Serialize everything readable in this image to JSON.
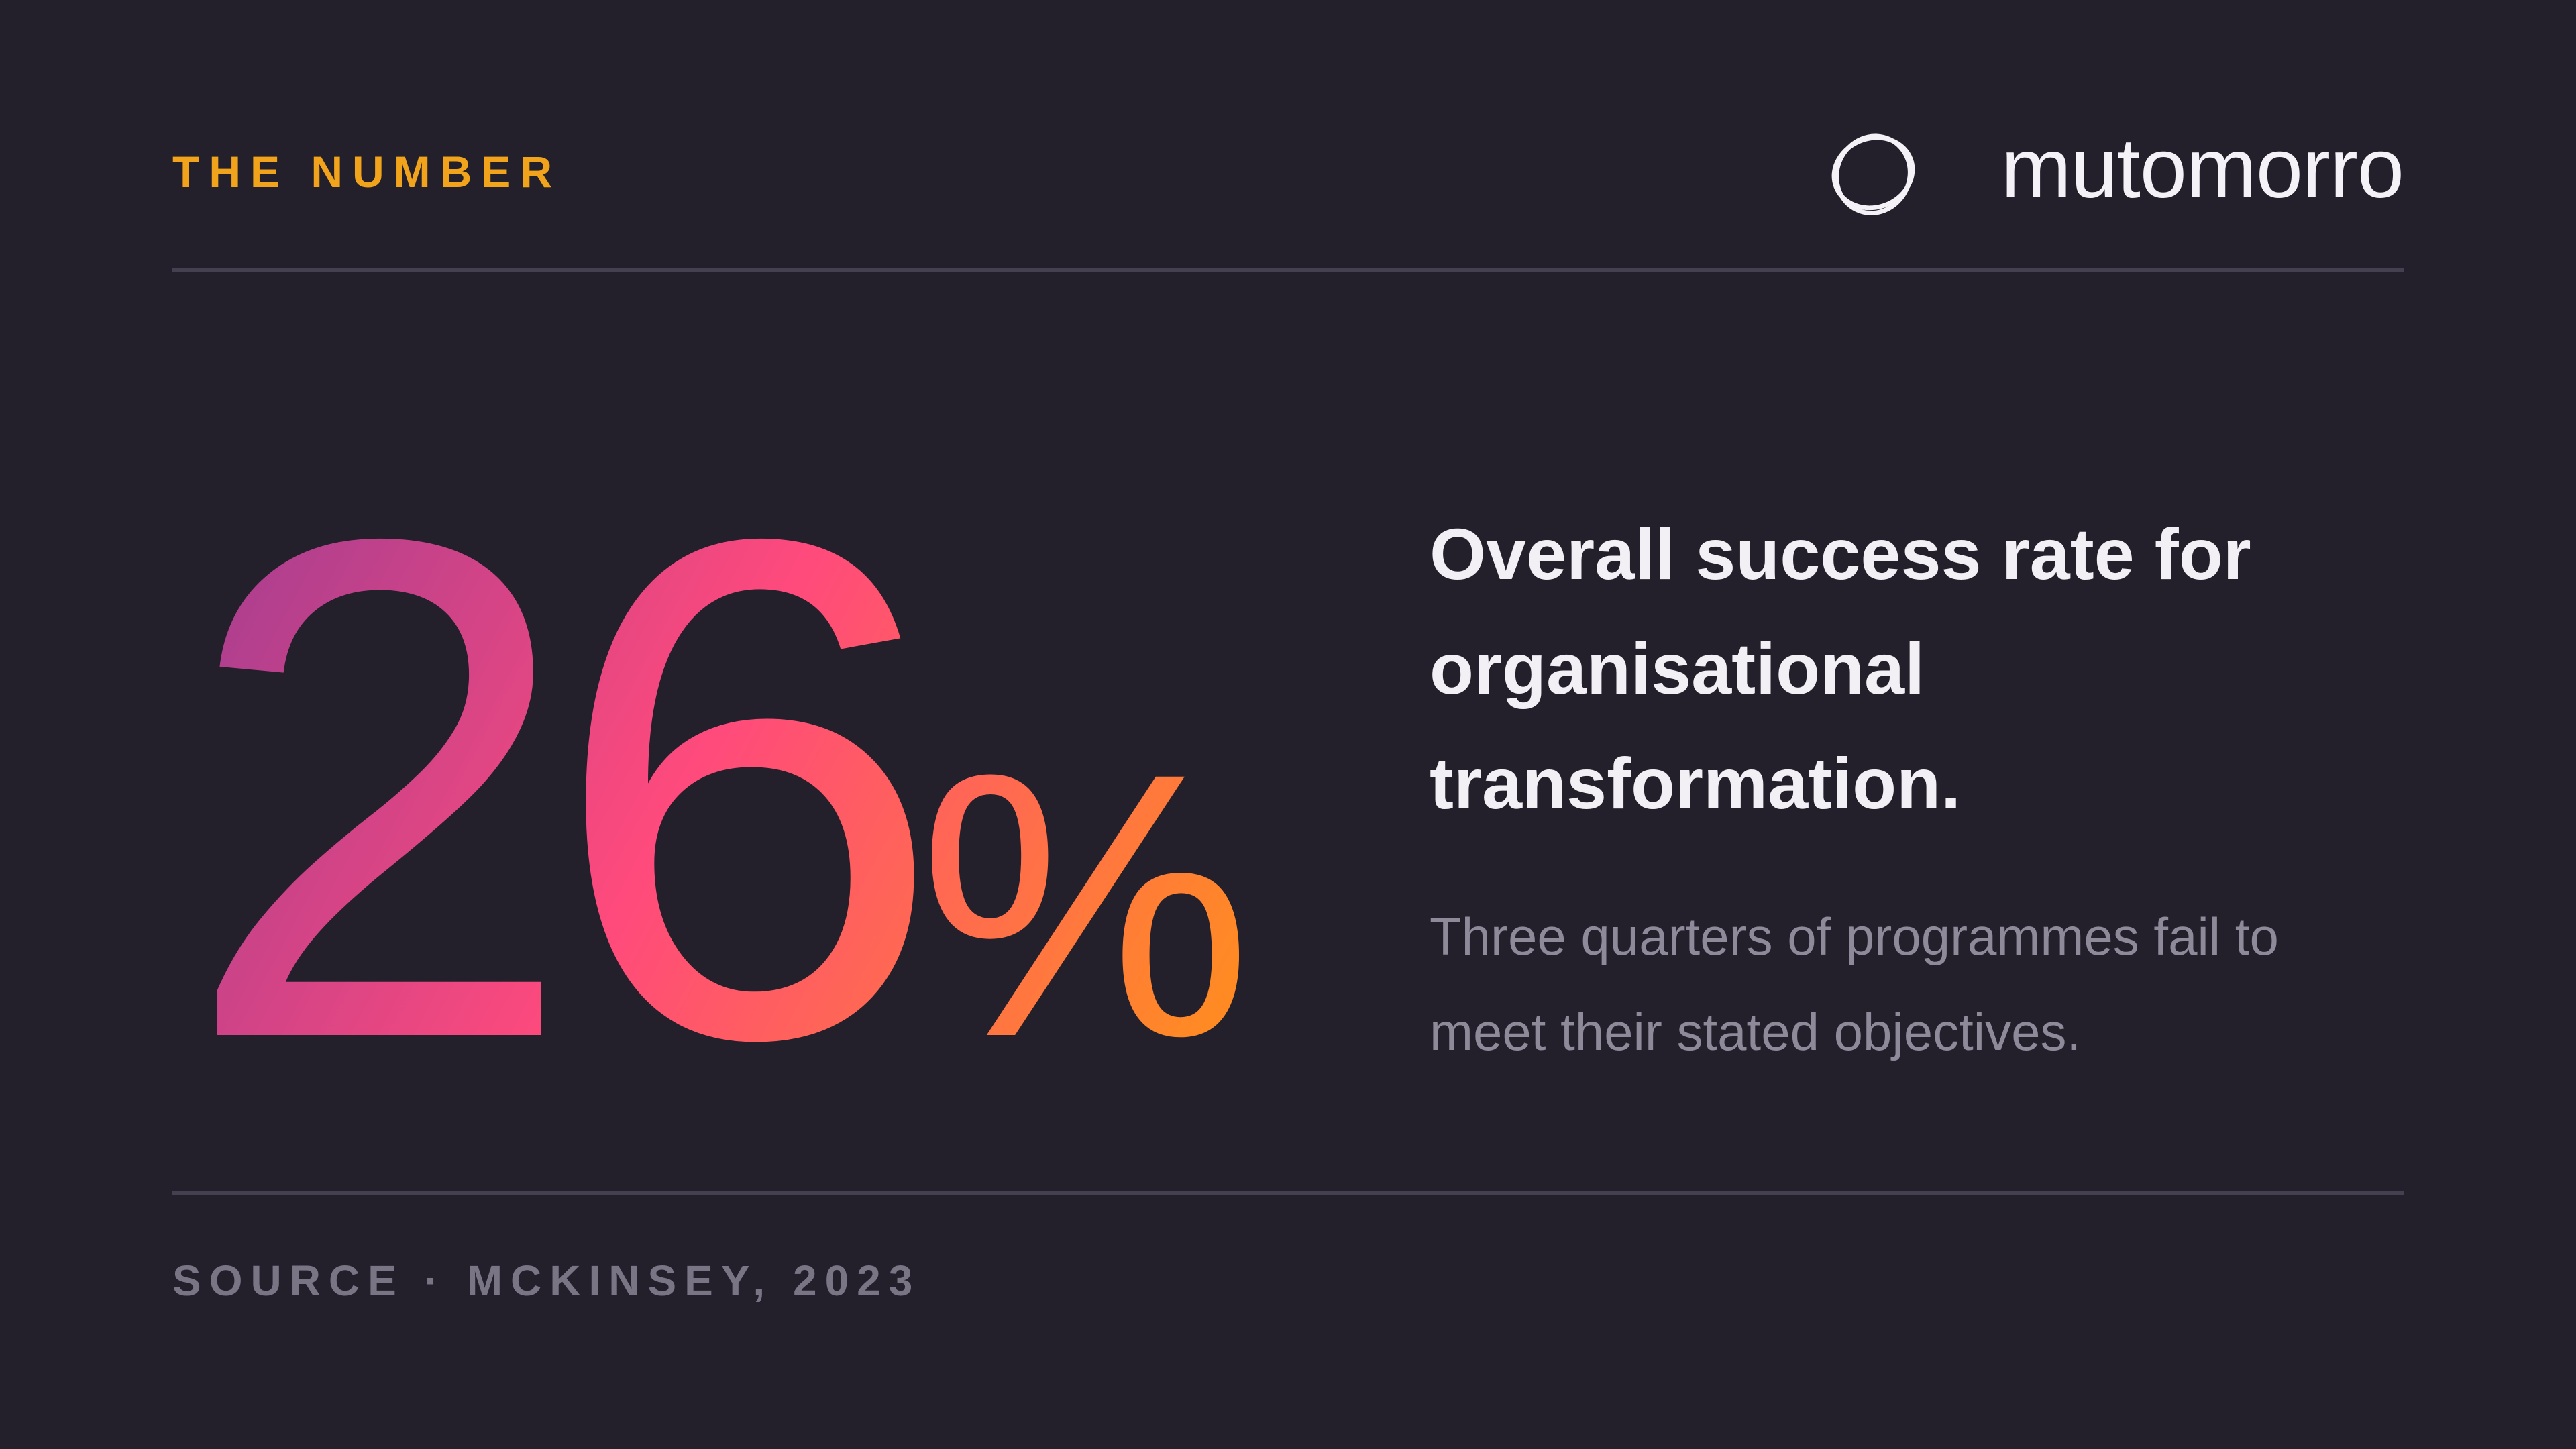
{
  "header": {
    "label": "THE NUMBER",
    "brand": "mutomorro"
  },
  "stat": {
    "value": "26",
    "unit": "%"
  },
  "headline": "Overall success rate for organisational transformation.",
  "body": "Three quarters of programmes fail to meet their stated objectives.",
  "footer": {
    "source": "SOURCE · MCKINSEY, 2023"
  }
}
